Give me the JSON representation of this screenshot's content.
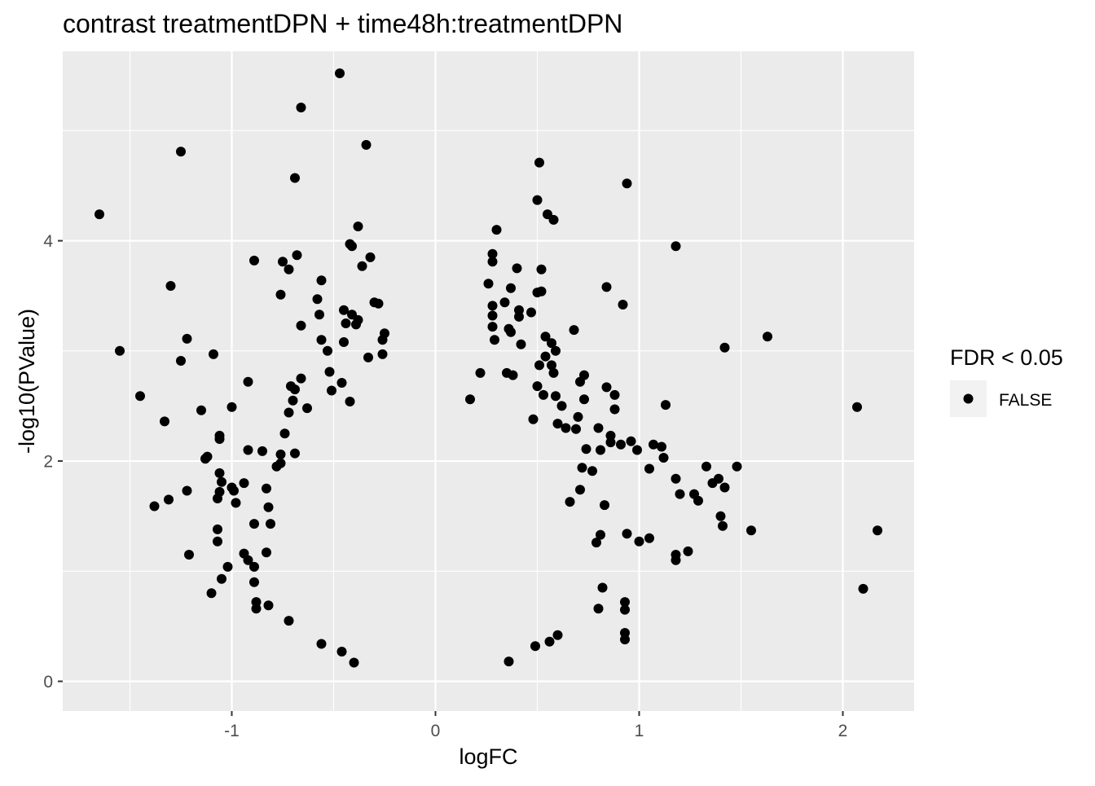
{
  "chart_data": {
    "type": "scatter",
    "title": "contrast treatmentDPN + time48h:treatmentDPN",
    "xlabel": "logFC",
    "ylabel": "-log10(PValue)",
    "xlim": [
      -1.83,
      2.35
    ],
    "ylim": [
      -0.27,
      5.72
    ],
    "x_ticks": [
      -1,
      0,
      1,
      2
    ],
    "x_tick_labels": [
      "-1",
      "0",
      "1",
      "2"
    ],
    "y_ticks": [
      0,
      2,
      4
    ],
    "y_tick_labels": [
      "0",
      "2",
      "4"
    ],
    "grid": true,
    "panel_background": "#ebebeb",
    "grid_color": "#ffffff",
    "point_color": "#000000",
    "legend": {
      "title": "FDR < 0.05",
      "position": "right",
      "entries": [
        {
          "label": "FALSE",
          "color": "#000000"
        }
      ]
    },
    "series": [
      {
        "name": "FALSE",
        "points": [
          [
            -0.47,
            5.52
          ],
          [
            -0.66,
            5.21
          ],
          [
            -0.34,
            4.87
          ],
          [
            -1.25,
            4.81
          ],
          [
            0.51,
            4.71
          ],
          [
            -0.69,
            4.57
          ],
          [
            0.94,
            4.52
          ],
          [
            0.5,
            4.37
          ],
          [
            -1.65,
            4.24
          ],
          [
            0.55,
            4.24
          ],
          [
            0.58,
            4.19
          ],
          [
            -0.38,
            4.13
          ],
          [
            0.3,
            4.1
          ],
          [
            -0.42,
            3.97
          ],
          [
            -0.41,
            3.95
          ],
          [
            1.18,
            3.95
          ],
          [
            -0.68,
            3.87
          ],
          [
            0.28,
            3.88
          ],
          [
            -0.89,
            3.82
          ],
          [
            -0.75,
            3.81
          ],
          [
            -0.32,
            3.85
          ],
          [
            0.28,
            3.81
          ],
          [
            -0.36,
            3.77
          ],
          [
            0.4,
            3.75
          ],
          [
            0.52,
            3.74
          ],
          [
            -0.72,
            3.74
          ],
          [
            -0.56,
            3.64
          ],
          [
            0.26,
            3.61
          ],
          [
            -1.3,
            3.59
          ],
          [
            0.84,
            3.58
          ],
          [
            0.37,
            3.57
          ],
          [
            0.5,
            3.53
          ],
          [
            0.52,
            3.54
          ],
          [
            -0.76,
            3.51
          ],
          [
            -0.58,
            3.47
          ],
          [
            0.34,
            3.44
          ],
          [
            0.92,
            3.42
          ],
          [
            -0.3,
            3.44
          ],
          [
            -0.28,
            3.43
          ],
          [
            0.28,
            3.41
          ],
          [
            -0.45,
            3.37
          ],
          [
            -0.41,
            3.33
          ],
          [
            0.41,
            3.37
          ],
          [
            0.47,
            3.35
          ],
          [
            0.28,
            3.32
          ],
          [
            -0.57,
            3.33
          ],
          [
            0.41,
            3.31
          ],
          [
            -0.38,
            3.28
          ],
          [
            -0.44,
            3.25
          ],
          [
            -0.39,
            3.24
          ],
          [
            -0.66,
            3.23
          ],
          [
            0.28,
            3.22
          ],
          [
            0.36,
            3.2
          ],
          [
            0.68,
            3.19
          ],
          [
            0.37,
            3.17
          ],
          [
            -0.25,
            3.16
          ],
          [
            0.54,
            3.13
          ],
          [
            1.63,
            3.13
          ],
          [
            -1.22,
            3.11
          ],
          [
            -0.26,
            3.1
          ],
          [
            0.29,
            3.1
          ],
          [
            -0.56,
            3.1
          ],
          [
            -0.45,
            3.08
          ],
          [
            0.42,
            3.06
          ],
          [
            0.57,
            3.07
          ],
          [
            1.42,
            3.03
          ],
          [
            -1.55,
            3.0
          ],
          [
            0.59,
            3.0
          ],
          [
            -1.09,
            2.97
          ],
          [
            -0.26,
            2.97
          ],
          [
            -0.53,
            3.0
          ],
          [
            0.54,
            2.95
          ],
          [
            -0.33,
            2.94
          ],
          [
            -1.25,
            2.91
          ],
          [
            0.51,
            2.87
          ],
          [
            0.57,
            2.87
          ],
          [
            0.58,
            2.8
          ],
          [
            -0.52,
            2.81
          ],
          [
            0.22,
            2.8
          ],
          [
            0.38,
            2.78
          ],
          [
            0.35,
            2.8
          ],
          [
            -0.66,
            2.75
          ],
          [
            0.73,
            2.78
          ],
          [
            0.71,
            2.72
          ],
          [
            -0.46,
            2.71
          ],
          [
            -0.92,
            2.72
          ],
          [
            0.84,
            2.67
          ],
          [
            -0.71,
            2.68
          ],
          [
            -0.69,
            2.65
          ],
          [
            0.5,
            2.68
          ],
          [
            -0.51,
            2.64
          ],
          [
            -1.45,
            2.59
          ],
          [
            0.53,
            2.6
          ],
          [
            0.59,
            2.59
          ],
          [
            0.88,
            2.6
          ],
          [
            -0.7,
            2.55
          ],
          [
            0.73,
            2.56
          ],
          [
            0.17,
            2.56
          ],
          [
            -0.42,
            2.54
          ],
          [
            0.62,
            2.5
          ],
          [
            -1.0,
            2.49
          ],
          [
            1.13,
            2.51
          ],
          [
            2.07,
            2.49
          ],
          [
            -1.15,
            2.46
          ],
          [
            -0.72,
            2.44
          ],
          [
            0.88,
            2.47
          ],
          [
            -0.63,
            2.48
          ],
          [
            0.48,
            2.38
          ],
          [
            -1.33,
            2.36
          ],
          [
            0.6,
            2.34
          ],
          [
            0.7,
            2.4
          ],
          [
            0.8,
            2.3
          ],
          [
            -1.06,
            2.23
          ],
          [
            -1.06,
            2.2
          ],
          [
            0.64,
            2.3
          ],
          [
            0.69,
            2.29
          ],
          [
            -0.74,
            2.25
          ],
          [
            0.86,
            2.23
          ],
          [
            0.86,
            2.17
          ],
          [
            0.96,
            2.18
          ],
          [
            0.99,
            2.1
          ],
          [
            0.91,
            2.15
          ],
          [
            1.07,
            2.15
          ],
          [
            1.11,
            2.13
          ],
          [
            0.81,
            2.1
          ],
          [
            0.74,
            2.11
          ],
          [
            -0.92,
            2.1
          ],
          [
            -0.85,
            2.09
          ],
          [
            -0.69,
            2.07
          ],
          [
            -0.76,
            2.06
          ],
          [
            -1.12,
            2.04
          ],
          [
            -1.13,
            2.02
          ],
          [
            1.12,
            2.03
          ],
          [
            1.05,
            1.93
          ],
          [
            1.18,
            1.84
          ],
          [
            1.33,
            1.95
          ],
          [
            1.48,
            1.95
          ],
          [
            1.36,
            1.8
          ],
          [
            1.39,
            1.84
          ],
          [
            1.42,
            1.76
          ],
          [
            1.2,
            1.7
          ],
          [
            1.27,
            1.7
          ],
          [
            1.29,
            1.64
          ],
          [
            1.4,
            1.5
          ],
          [
            1.41,
            1.41
          ],
          [
            1.55,
            1.37
          ],
          [
            2.17,
            1.37
          ],
          [
            2.1,
            0.84
          ],
          [
            1.18,
            1.15
          ],
          [
            1.24,
            1.18
          ],
          [
            1.18,
            1.1
          ],
          [
            1.0,
            1.27
          ],
          [
            1.05,
            1.3
          ],
          [
            0.94,
            1.34
          ],
          [
            0.93,
            0.72
          ],
          [
            0.93,
            0.65
          ],
          [
            0.93,
            0.44
          ],
          [
            0.93,
            0.38
          ],
          [
            -1.38,
            1.59
          ],
          [
            -1.31,
            1.65
          ],
          [
            -1.22,
            1.73
          ],
          [
            -1.21,
            1.15
          ],
          [
            -1.1,
            0.8
          ],
          [
            -1.05,
            0.93
          ],
          [
            -1.02,
            1.04
          ],
          [
            -1.07,
            1.27
          ],
          [
            -1.07,
            1.38
          ],
          [
            -1.07,
            1.66
          ],
          [
            -1.06,
            1.72
          ],
          [
            -1.05,
            1.81
          ],
          [
            -1.06,
            1.89
          ],
          [
            -1.0,
            1.76
          ],
          [
            -0.99,
            1.73
          ],
          [
            -0.98,
            1.62
          ],
          [
            -0.94,
            1.8
          ],
          [
            -0.89,
            1.43
          ],
          [
            -0.94,
            1.16
          ],
          [
            -0.92,
            1.1
          ],
          [
            -0.89,
            1.04
          ],
          [
            -0.89,
            0.9
          ],
          [
            -0.88,
            0.72
          ],
          [
            -0.88,
            0.66
          ],
          [
            -0.83,
            1.17
          ],
          [
            -0.81,
            1.43
          ],
          [
            -0.82,
            1.58
          ],
          [
            -0.83,
            1.75
          ],
          [
            -0.78,
            1.95
          ],
          [
            -0.76,
            1.98
          ],
          [
            0.83,
            1.6
          ],
          [
            0.81,
            1.33
          ],
          [
            0.79,
            1.26
          ],
          [
            0.82,
            0.85
          ],
          [
            0.8,
            0.66
          ],
          [
            0.77,
            1.91
          ],
          [
            0.72,
            1.94
          ],
          [
            0.71,
            1.74
          ],
          [
            0.66,
            1.63
          ],
          [
            0.6,
            0.42
          ],
          [
            0.56,
            0.36
          ],
          [
            0.49,
            0.32
          ],
          [
            0.36,
            0.18
          ],
          [
            -0.56,
            0.34
          ],
          [
            -0.72,
            0.55
          ],
          [
            -0.82,
            0.69
          ],
          [
            -0.46,
            0.27
          ],
          [
            -0.4,
            0.17
          ]
        ]
      }
    ]
  }
}
